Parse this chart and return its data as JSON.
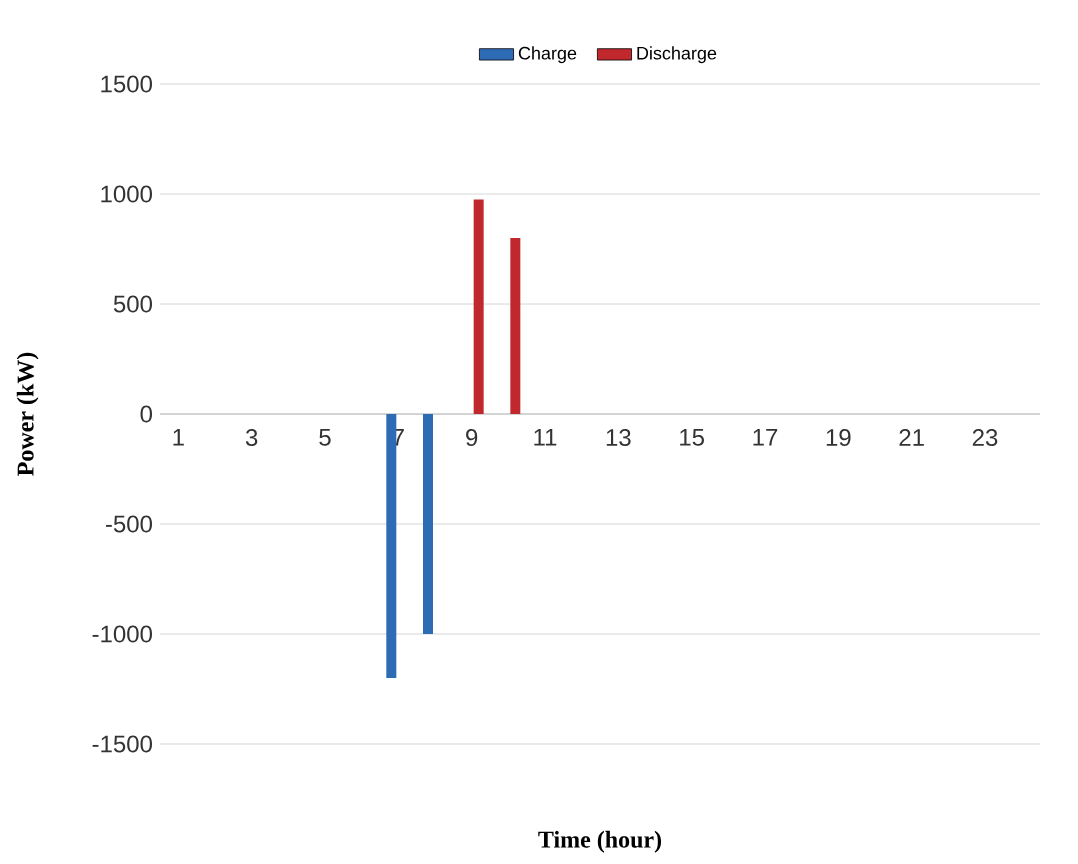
{
  "chart_data": {
    "type": "bar",
    "xlabel": "Time (hour)",
    "ylabel": "Power (kW)",
    "categories": [
      "1",
      null,
      "3",
      null,
      "5",
      null,
      "7",
      null,
      "9",
      null,
      "11",
      null,
      "13",
      null,
      "15",
      null,
      "17",
      null,
      "19",
      null,
      "21",
      null,
      "23",
      null
    ],
    "series": [
      {
        "name": "Charge",
        "color": "#2e6bb5",
        "values": [
          0,
          0,
          0,
          0,
          0,
          0,
          -1200,
          -1000,
          0,
          0,
          0,
          0,
          0,
          0,
          0,
          0,
          0,
          0,
          0,
          0,
          0,
          0,
          0,
          0
        ]
      },
      {
        "name": "Discharge",
        "color": "#c0282d",
        "values": [
          0,
          0,
          0,
          0,
          0,
          0,
          0,
          0,
          975,
          800,
          0,
          0,
          0,
          0,
          0,
          0,
          0,
          0,
          0,
          0,
          0,
          0,
          0,
          0
        ]
      }
    ],
    "ylim": [
      -1500,
      1500
    ],
    "yticks": [
      -1500,
      -1000,
      -500,
      0,
      500,
      1000,
      1500
    ],
    "grid": "y",
    "legend": "top"
  }
}
